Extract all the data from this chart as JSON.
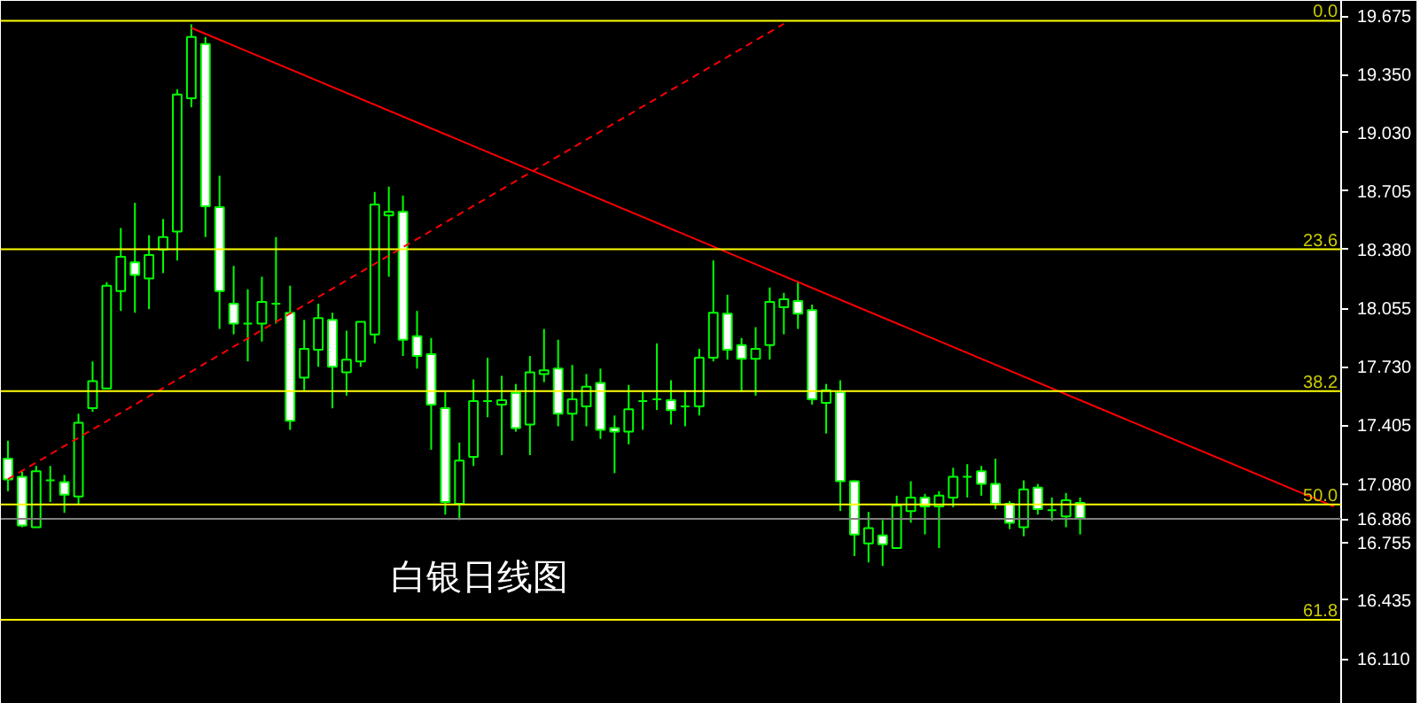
{
  "chart_data": {
    "type": "candlestick",
    "categories": [
      null,
      null,
      null,
      null,
      null,
      null,
      null,
      null,
      null,
      null,
      null,
      null,
      null,
      null,
      null,
      null,
      null,
      null,
      null,
      null,
      null,
      null,
      null,
      null,
      null,
      null,
      null,
      null,
      null,
      null,
      null,
      null,
      null,
      null,
      null,
      null,
      null,
      null,
      null,
      null,
      null,
      null,
      null,
      null,
      null,
      null,
      null,
      null,
      null,
      null,
      null,
      null,
      null,
      null,
      null,
      null,
      null,
      null,
      null,
      null,
      null,
      null,
      null,
      null,
      null,
      null,
      null,
      null,
      null,
      null,
      null,
      null,
      null,
      null,
      null,
      null,
      null,
      null,
      null,
      null,
      null,
      null,
      null,
      null,
      null,
      null,
      null,
      null,
      null,
      null,
      null,
      null,
      null,
      null,
      null
    ],
    "series": [
      {
        "type": "candlestick",
        "color": "#00ff00",
        "ohlc": [
          [
            17.22,
            17.32,
            17.04,
            17.105
          ],
          [
            17.12,
            17.15,
            16.84,
            16.85
          ],
          [
            16.84,
            17.18,
            16.84,
            17.15
          ],
          [
            17.1,
            17.18,
            16.98,
            17.1
          ],
          [
            17.09,
            17.13,
            16.92,
            17.02
          ],
          [
            17.01,
            17.47,
            16.97,
            17.42
          ],
          [
            17.5,
            17.76,
            17.48,
            17.65
          ],
          [
            17.61,
            18.2,
            17.61,
            18.18
          ],
          [
            18.15,
            18.5,
            18.04,
            18.34
          ],
          [
            18.31,
            18.64,
            18.03,
            18.24
          ],
          [
            18.22,
            18.46,
            18.05,
            18.35
          ],
          [
            18.38,
            18.55,
            18.25,
            18.45
          ],
          [
            18.48,
            19.27,
            18.32,
            19.24
          ],
          [
            19.22,
            19.63,
            19.17,
            19.56
          ],
          [
            19.52,
            19.56,
            18.45,
            18.62
          ],
          [
            18.615,
            18.79,
            17.94,
            18.15
          ],
          [
            18.08,
            18.29,
            17.91,
            17.97
          ],
          [
            17.97,
            18.16,
            17.76,
            17.97
          ],
          [
            17.97,
            18.23,
            17.87,
            18.09
          ],
          [
            18.08,
            18.45,
            17.97,
            18.08
          ],
          [
            18.03,
            18.18,
            17.38,
            17.43
          ],
          [
            17.67,
            17.99,
            17.6,
            17.83
          ],
          [
            17.825,
            18.08,
            17.73,
            18.0
          ],
          [
            17.99,
            18.03,
            17.5,
            17.73
          ],
          [
            17.7,
            17.93,
            17.57,
            17.77
          ],
          [
            17.76,
            17.98,
            17.73,
            17.98
          ],
          [
            17.91,
            18.7,
            17.86,
            18.63
          ],
          [
            18.57,
            18.73,
            18.23,
            18.59
          ],
          [
            18.59,
            18.68,
            17.79,
            17.88
          ],
          [
            17.9,
            18.04,
            17.72,
            17.79
          ],
          [
            17.8,
            17.89,
            17.27,
            17.52
          ],
          [
            17.5,
            17.59,
            16.91,
            16.98
          ],
          [
            16.97,
            17.31,
            16.88,
            17.21
          ],
          [
            17.23,
            17.66,
            17.18,
            17.54
          ],
          [
            17.54,
            17.78,
            17.45,
            17.54
          ],
          [
            17.52,
            17.68,
            17.24,
            17.545
          ],
          [
            17.585,
            17.635,
            17.37,
            17.39
          ],
          [
            17.41,
            17.79,
            17.24,
            17.7
          ],
          [
            17.69,
            17.94,
            17.645,
            17.71
          ],
          [
            17.72,
            17.88,
            17.4,
            17.47
          ],
          [
            17.47,
            17.74,
            17.32,
            17.55
          ],
          [
            17.51,
            17.69,
            17.4,
            17.62
          ],
          [
            17.64,
            17.72,
            17.33,
            17.38
          ],
          [
            17.39,
            17.46,
            17.14,
            17.37
          ],
          [
            17.37,
            17.63,
            17.3,
            17.495
          ],
          [
            17.54,
            17.59,
            17.38,
            17.54
          ],
          [
            17.55,
            17.86,
            17.49,
            17.55
          ],
          [
            17.545,
            17.655,
            17.41,
            17.49
          ],
          [
            17.51,
            17.6,
            17.4,
            17.51
          ],
          [
            17.51,
            17.83,
            17.46,
            17.78
          ],
          [
            17.78,
            18.32,
            17.76,
            18.03
          ],
          [
            18.025,
            18.13,
            17.77,
            17.825
          ],
          [
            17.85,
            17.89,
            17.59,
            17.775
          ],
          [
            17.775,
            17.95,
            17.57,
            17.83
          ],
          [
            17.85,
            18.17,
            17.77,
            18.09
          ],
          [
            18.06,
            18.14,
            17.91,
            18.105
          ],
          [
            18.095,
            18.205,
            17.94,
            18.025
          ],
          [
            18.045,
            18.075,
            17.52,
            17.55
          ],
          [
            17.53,
            17.635,
            17.36,
            17.6
          ],
          [
            17.59,
            17.655,
            16.93,
            17.095
          ],
          [
            17.095,
            17.1,
            16.68,
            16.8
          ],
          [
            16.75,
            16.925,
            16.645,
            16.835
          ],
          [
            16.795,
            16.88,
            16.625,
            16.745
          ],
          [
            16.725,
            17.015,
            16.725,
            16.96
          ],
          [
            16.93,
            17.095,
            16.865,
            17.005
          ],
          [
            17.005,
            17.025,
            16.8,
            16.955
          ],
          [
            16.955,
            17.04,
            16.725,
            17.015
          ],
          [
            17.005,
            17.17,
            16.95,
            17.12
          ],
          [
            17.12,
            17.19,
            17.005,
            17.12
          ],
          [
            17.15,
            17.18,
            17.015,
            17.08
          ],
          [
            17.08,
            17.22,
            16.94,
            16.97
          ],
          [
            16.97,
            16.985,
            16.83,
            16.865
          ],
          [
            16.84,
            17.1,
            16.79,
            17.05
          ],
          [
            17.06,
            17.08,
            16.91,
            16.94
          ],
          [
            16.935,
            17.005,
            16.875,
            16.935
          ],
          [
            16.9,
            17.03,
            16.84,
            16.99
          ],
          [
            16.975,
            17.005,
            16.8,
            16.89
          ],
          null,
          null,
          null,
          null,
          null,
          null,
          null,
          null,
          null,
          null,
          null,
          null,
          null,
          null,
          null,
          null,
          null,
          null
        ]
      },
      {
        "type": "line",
        "color": "#ff0000",
        "line_style": "solid",
        "values": [
          null,
          null,
          null,
          null,
          null,
          null,
          null,
          null,
          null,
          null,
          null,
          null,
          null,
          19.61,
          null,
          null,
          null,
          null,
          null,
          null,
          null,
          null,
          null,
          null,
          null,
          null,
          null,
          null,
          null,
          null,
          null,
          null,
          null,
          null,
          null,
          null,
          null,
          null,
          null,
          null,
          null,
          null,
          null,
          null,
          null,
          null,
          null,
          null,
          null,
          null,
          null,
          null,
          null,
          null,
          null,
          null,
          null,
          null,
          null,
          null,
          null,
          null,
          null,
          null,
          null,
          null,
          null,
          null,
          null,
          null,
          null,
          null,
          null,
          null,
          null,
          null,
          null,
          null,
          null,
          null,
          null,
          null,
          null,
          null,
          null,
          null,
          null,
          null,
          null,
          null,
          null,
          null,
          null,
          null,
          16.955
        ]
      },
      {
        "type": "line",
        "color": "#ff0000",
        "line_style": "dashed",
        "values": [
          17.107,
          null,
          null,
          null,
          null,
          null,
          null,
          null,
          null,
          null,
          null,
          null,
          null,
          null,
          null,
          null,
          null,
          null,
          null,
          null,
          null,
          null,
          null,
          null,
          null,
          null,
          null,
          null,
          null,
          null,
          null,
          null,
          null,
          null,
          null,
          null,
          null,
          null,
          null,
          null,
          null,
          null,
          null,
          null,
          null,
          null,
          null,
          null,
          null,
          null,
          null,
          null,
          null,
          null,
          null,
          19.633,
          null,
          null,
          null,
          null,
          null,
          null,
          null,
          null,
          null,
          null,
          null,
          null,
          null,
          null,
          null,
          null,
          null,
          null,
          null,
          null,
          null,
          null,
          null,
          null,
          null,
          null,
          null,
          null,
          null,
          null,
          null,
          null,
          null,
          null,
          null,
          null,
          null,
          null,
          null
        ]
      }
    ],
    "ylim": [
      15.86,
      19.76
    ],
    "yticks": [
      19.675,
      {
        "value": 19.35,
        "label": "19.350"
      },
      {
        "value": 19.03,
        "label": "19.030"
      },
      18.705,
      {
        "value": 18.38,
        "label": "18.380"
      },
      18.055,
      {
        "value": 17.73,
        "label": "17.730"
      },
      17.405,
      {
        "value": 17.08,
        "label": "17.080"
      },
      16.886,
      16.755,
      16.435,
      {
        "value": 16.11,
        "label": "16.110"
      }
    ],
    "tick_labels": "y",
    "ref_lines": [
      {
        "axis": "y",
        "value": 19.65,
        "color": "#ffff00"
      },
      {
        "axis": "y",
        "value": 18.382,
        "color": "#ffff00"
      },
      {
        "axis": "y",
        "value": 17.595,
        "color": "#ffff00"
      },
      {
        "axis": "y",
        "value": 16.966,
        "color": "#ffff00"
      },
      {
        "axis": "y",
        "value": 16.327,
        "color": "#ffff00"
      },
      {
        "axis": "y",
        "value": 16.886,
        "color": "#808080"
      }
    ],
    "annotations": [
      {
        "text": "0.0",
        "y": 19.65
      },
      {
        "text": "23.6",
        "y": 18.382
      },
      {
        "text": "38.2",
        "y": 17.595
      },
      {
        "text": "50.0",
        "y": 16.966
      },
      {
        "text": "61.8",
        "y": 16.327
      },
      "白银日线图"
    ]
  }
}
